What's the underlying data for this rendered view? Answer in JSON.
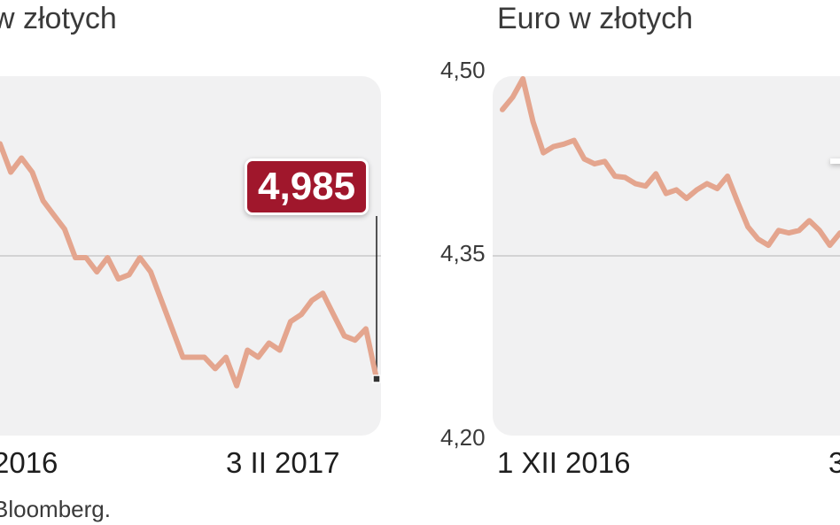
{
  "chart_data": [
    {
      "type": "line",
      "title": "w złotych",
      "yticks": [],
      "ylim": [
        4.94,
        5.2
      ],
      "x_labels": [
        "2016",
        "3 II 2017"
      ],
      "last_value_label": "4,985",
      "color": "#e4a58e",
      "values": [
        5.15,
        5.13,
        5.14,
        5.13,
        5.11,
        5.1,
        5.09,
        5.07,
        5.07,
        5.06,
        5.07,
        5.055,
        5.058,
        5.07,
        5.06,
        5.04,
        5.02,
        5.0,
        5.0,
        5.0,
        4.992,
        5.0,
        4.98,
        5.005,
        5.0,
        5.01,
        5.005,
        5.025,
        5.03,
        5.04,
        5.045,
        5.03,
        5.015,
        5.012,
        5.02,
        4.985
      ]
    },
    {
      "type": "line",
      "title": "Euro w złotych",
      "yticks": [
        "4,50",
        "4,35",
        "4,20"
      ],
      "ylim": [
        4.2,
        4.5
      ],
      "x_labels": [
        "1 XII 2016",
        "3"
      ],
      "color": "#e4a58e",
      "values": [
        4.47,
        4.48,
        4.495,
        4.46,
        4.435,
        4.44,
        4.442,
        4.445,
        4.43,
        4.426,
        4.428,
        4.416,
        4.415,
        4.41,
        4.408,
        4.418,
        4.402,
        4.405,
        4.398,
        4.405,
        4.41,
        4.406,
        4.416,
        4.395,
        4.375,
        4.365,
        4.36,
        4.372,
        4.37,
        4.372,
        4.38,
        4.372,
        4.36,
        4.37
      ]
    }
  ],
  "source": "Bloomberg."
}
